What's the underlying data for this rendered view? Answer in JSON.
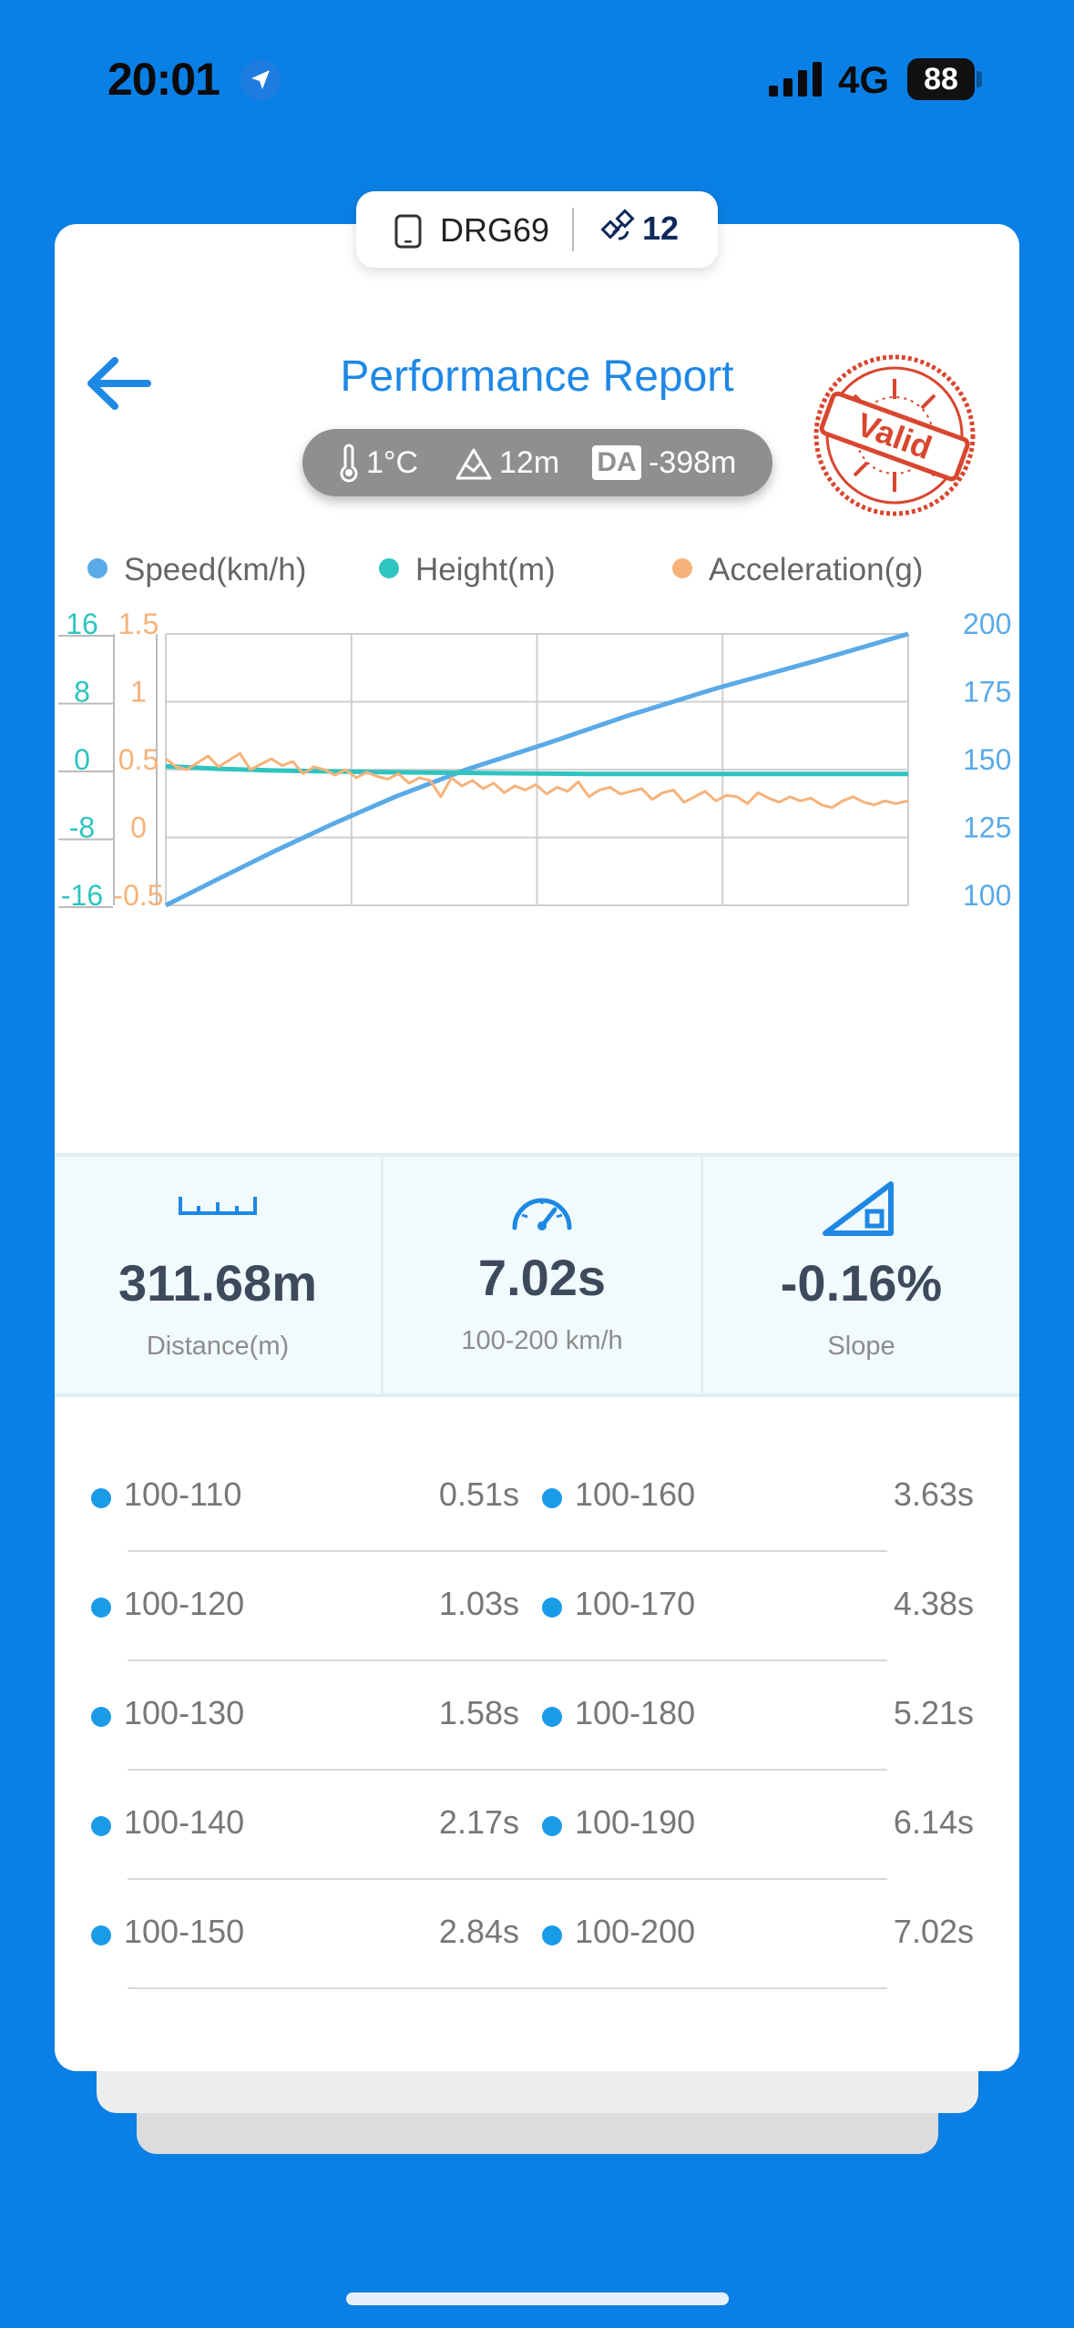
{
  "status_bar": {
    "time": "20:01",
    "network": "4G",
    "battery": "88"
  },
  "device": {
    "name": "DRG69",
    "satellites": "12"
  },
  "header": {
    "title": "Performance Report",
    "stamp": "Valid"
  },
  "conditions": {
    "temperature": "1°C",
    "altitude": "12m",
    "da_label": "DA",
    "density_altitude": "-398m"
  },
  "legend": [
    {
      "label": "Speed(km/h)",
      "color": "#5AAAE8"
    },
    {
      "label": "Height(m)",
      "color": "#2EC4C0"
    },
    {
      "label": "Acceleration(g)",
      "color": "#F7B27A"
    }
  ],
  "chart_data": {
    "type": "line",
    "x_range": [
      0,
      7.02
    ],
    "axes": {
      "height_ticks": [
        "16",
        "8",
        "0",
        "-8",
        "-16"
      ],
      "accel_ticks": [
        "1.5",
        "1",
        "0.5",
        "0",
        "-0.5"
      ],
      "speed_ticks": [
        "200",
        "175",
        "150",
        "125",
        "100"
      ],
      "height_range": [
        -16,
        16
      ],
      "accel_range": [
        -0.5,
        1.5
      ],
      "speed_range": [
        100,
        200
      ]
    },
    "grid": true,
    "series": [
      {
        "name": "Speed(km/h)",
        "axis": "speed",
        "color": "#5AAAE8",
        "x": [
          0,
          0.51,
          1.03,
          1.58,
          2.17,
          2.84,
          3.63,
          4.38,
          5.21,
          6.14,
          7.02
        ],
        "values": [
          100,
          110,
          120,
          130,
          140,
          150,
          160,
          170,
          180,
          190,
          200
        ]
      },
      {
        "name": "Height(m)",
        "axis": "height",
        "color": "#2EC4C0",
        "x": [
          0,
          0.5,
          1.0,
          1.5,
          2.0,
          2.5,
          3.0,
          3.5,
          4.0,
          5.0,
          6.0,
          7.02
        ],
        "values": [
          0.4,
          0.1,
          -0.1,
          -0.2,
          -0.3,
          -0.35,
          -0.4,
          -0.45,
          -0.5,
          -0.5,
          -0.5,
          -0.5
        ]
      },
      {
        "name": "Acceleration(g)",
        "axis": "accel",
        "color": "#F7B27A",
        "x": [
          0,
          0.1,
          0.2,
          0.3,
          0.4,
          0.5,
          0.6,
          0.7,
          0.8,
          0.9,
          1.0,
          1.1,
          1.2,
          1.3,
          1.4,
          1.5,
          1.6,
          1.7,
          1.8,
          1.9,
          2.0,
          2.1,
          2.2,
          2.3,
          2.4,
          2.5,
          2.6,
          2.7,
          2.8,
          2.9,
          3.0,
          3.1,
          3.2,
          3.3,
          3.4,
          3.5,
          3.6,
          3.7,
          3.8,
          3.9,
          4.0,
          4.1,
          4.2,
          4.3,
          4.4,
          4.5,
          4.6,
          4.7,
          4.8,
          4.9,
          5.0,
          5.1,
          5.2,
          5.3,
          5.4,
          5.5,
          5.6,
          5.7,
          5.8,
          5.9,
          6.0,
          6.1,
          6.2,
          6.3,
          6.4,
          6.5,
          6.6,
          6.7,
          6.8,
          6.9,
          7.02
        ],
        "values": [
          0.58,
          0.52,
          0.5,
          0.55,
          0.6,
          0.52,
          0.57,
          0.62,
          0.5,
          0.54,
          0.58,
          0.53,
          0.56,
          0.47,
          0.52,
          0.5,
          0.46,
          0.5,
          0.44,
          0.48,
          0.45,
          0.43,
          0.47,
          0.4,
          0.44,
          0.42,
          0.3,
          0.44,
          0.38,
          0.42,
          0.36,
          0.4,
          0.33,
          0.38,
          0.35,
          0.39,
          0.32,
          0.37,
          0.34,
          0.41,
          0.3,
          0.35,
          0.37,
          0.32,
          0.34,
          0.36,
          0.28,
          0.33,
          0.35,
          0.26,
          0.3,
          0.34,
          0.27,
          0.31,
          0.3,
          0.25,
          0.33,
          0.29,
          0.26,
          0.3,
          0.27,
          0.29,
          0.24,
          0.22,
          0.27,
          0.3,
          0.26,
          0.24,
          0.27,
          0.25,
          0.27
        ]
      }
    ]
  },
  "stats": [
    {
      "value": "311.68m",
      "label": "Distance(m)",
      "icon": "ruler-icon"
    },
    {
      "value": "7.02s",
      "label": "100-200 km/h",
      "icon": "speedometer-icon"
    },
    {
      "value": "-0.16%",
      "label": "Slope",
      "icon": "slope-icon"
    }
  ],
  "splits": [
    {
      "range": "100-110",
      "time": "0.51s"
    },
    {
      "range": "100-120",
      "time": "1.03s"
    },
    {
      "range": "100-130",
      "time": "1.58s"
    },
    {
      "range": "100-140",
      "time": "2.17s"
    },
    {
      "range": "100-150",
      "time": "2.84s"
    },
    {
      "range": "100-160",
      "time": "3.63s"
    },
    {
      "range": "100-170",
      "time": "4.38s"
    },
    {
      "range": "100-180",
      "time": "5.21s"
    },
    {
      "range": "100-190",
      "time": "6.14s"
    },
    {
      "range": "100-200",
      "time": "7.02s"
    }
  ]
}
